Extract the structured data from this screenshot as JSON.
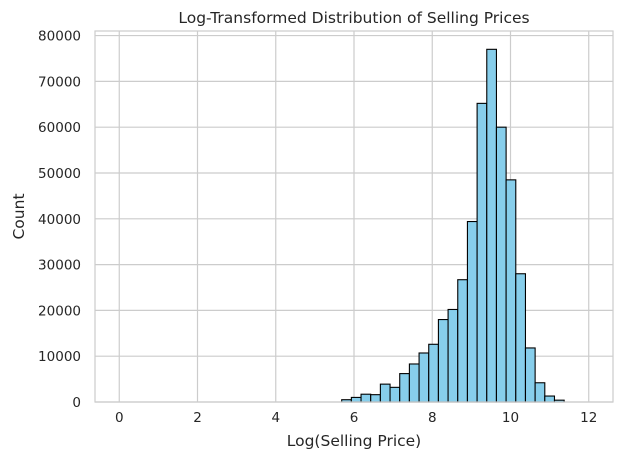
{
  "chart_data": {
    "type": "bar",
    "title": "Log-Transformed Distribution of Selling Prices",
    "xlabel": "Log(Selling Price)",
    "ylabel": "Count",
    "xlim": [
      -0.62,
      12.62
    ],
    "ylim": [
      0,
      81000
    ],
    "xticks": [
      0,
      2,
      4,
      6,
      8,
      10,
      12
    ],
    "yticks": [
      0,
      10000,
      20000,
      30000,
      40000,
      50000,
      60000,
      70000,
      80000
    ],
    "grid": true,
    "bar_color": "#87ceeb",
    "edge_color": "#000000",
    "bin_width": 0.2472,
    "bin_starts": [
      0.0,
      0.2472,
      0.4944,
      0.7416,
      0.9888,
      1.236,
      1.4832,
      1.7304,
      1.9776,
      2.2248,
      2.472,
      2.7192,
      2.9664,
      3.2136,
      3.4608,
      3.708,
      3.9552,
      4.2024,
      4.4496,
      4.6968,
      4.944,
      5.1912,
      5.4384,
      5.6856,
      5.9328,
      6.18,
      6.4272,
      6.6744,
      6.9216,
      7.1688,
      7.416,
      7.6632,
      7.9104,
      8.1576,
      8.4048,
      8.652,
      8.8992,
      9.1464,
      9.3936,
      9.6408,
      9.888,
      10.1352,
      10.3824,
      10.6296,
      10.8768,
      11.124,
      11.3712,
      11.6184,
      11.8656,
      12.1128
    ],
    "values": [
      0,
      0,
      0,
      0,
      0,
      0,
      0,
      0,
      0,
      0,
      0,
      0,
      0,
      0,
      0,
      0,
      0,
      0,
      0,
      0,
      0,
      0,
      0,
      500,
      1000,
      1700,
      1600,
      3900,
      3200,
      6200,
      8300,
      10700,
      12600,
      18000,
      20200,
      26700,
      39400,
      65200,
      77000,
      60000,
      48500,
      28000,
      11800,
      4200,
      1300,
      400,
      0,
      0,
      0,
      0
    ]
  }
}
